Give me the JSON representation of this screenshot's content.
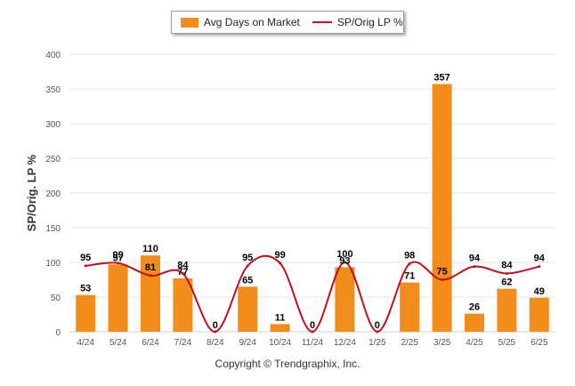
{
  "legend": {
    "bar_label": "Avg Days on Market",
    "line_label": "SP/Orig LP %"
  },
  "copyright": "Copyright © Trendgraphix, Inc.",
  "colors": {
    "bar": "#f28c1a",
    "line": "#c0101c",
    "grid": "#e6e6e6",
    "axis_text": "#555555",
    "label_text": "#000000"
  },
  "chart_data": {
    "type": "bar",
    "categories": [
      "4/24",
      "5/24",
      "6/24",
      "7/24",
      "8/24",
      "9/24",
      "10/24",
      "11/24",
      "12/24",
      "1/25",
      "2/25",
      "3/25",
      "4/25",
      "5/25",
      "6/25"
    ],
    "series": [
      {
        "name": "Avg Days on Market",
        "type": "bar",
        "values": [
          53,
          97,
          110,
          77,
          0,
          65,
          11,
          0,
          93,
          0,
          71,
          357,
          26,
          62,
          49
        ]
      },
      {
        "name": "SP/Orig LP %",
        "type": "line",
        "values": [
          95,
          99,
          81,
          84,
          0,
          95,
          99,
          0,
          100,
          0,
          98,
          75,
          94,
          84,
          94
        ]
      }
    ],
    "ylabel": "SP/Orig. LP %",
    "ylim": [
      0,
      400
    ],
    "yticks": [
      0,
      50,
      100,
      150,
      200,
      250,
      300,
      350,
      400
    ],
    "grid": true,
    "legend_position": "top"
  }
}
